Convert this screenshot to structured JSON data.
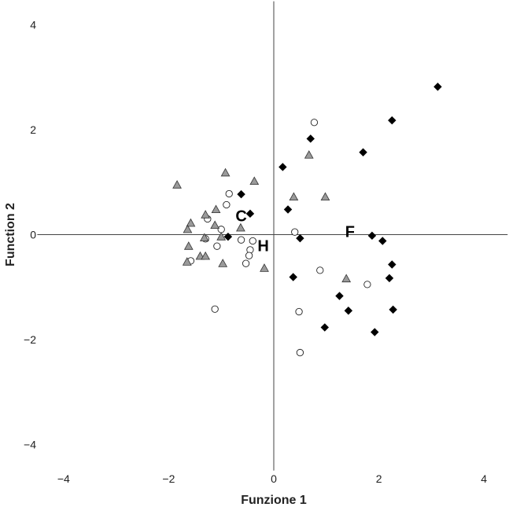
{
  "chart_data": {
    "type": "scatter",
    "title": "",
    "xlabel": "Funzione 1",
    "ylabel": "Function 2",
    "xlim": [
      -4.5,
      4.45
    ],
    "ylim": [
      -4.5,
      4.45
    ],
    "x_ticks": [
      -4,
      -2,
      0,
      2,
      4
    ],
    "y_ticks": [
      -4,
      -2,
      0,
      2,
      4
    ],
    "x_tick_labels": [
      "−4",
      "−2",
      "0",
      "2",
      "4"
    ],
    "y_tick_labels": [
      "−4",
      "−2",
      "0",
      "2",
      "4"
    ],
    "zero_lines": true,
    "grid": false,
    "series": [
      {
        "marker": "diamond",
        "fill": "#000000",
        "points": [
          [
            3.12,
            2.82
          ],
          [
            2.25,
            2.18
          ],
          [
            1.7,
            1.57
          ],
          [
            0.7,
            1.83
          ],
          [
            0.17,
            1.29
          ],
          [
            -0.62,
            0.77
          ],
          [
            -0.45,
            0.4
          ],
          [
            0.27,
            0.48
          ],
          [
            -0.87,
            -0.04
          ],
          [
            0.5,
            -0.07
          ],
          [
            1.87,
            -0.02
          ],
          [
            2.07,
            -0.12
          ],
          [
            2.25,
            -0.57
          ],
          [
            2.2,
            -0.83
          ],
          [
            0.37,
            -0.81
          ],
          [
            1.25,
            -1.17
          ],
          [
            1.42,
            -1.45
          ],
          [
            2.27,
            -1.43
          ],
          [
            0.97,
            -1.77
          ],
          [
            1.92,
            -1.86
          ]
        ]
      },
      {
        "marker": "circle",
        "fill": "#ffffff",
        "points": [
          [
            0.77,
            2.14
          ],
          [
            -0.85,
            0.78
          ],
          [
            -0.9,
            0.57
          ],
          [
            -1.26,
            0.3
          ],
          [
            -1.0,
            0.1
          ],
          [
            -1.3,
            -0.08
          ],
          [
            -1.58,
            -0.5
          ],
          [
            -1.08,
            -0.22
          ],
          [
            -0.4,
            -0.12
          ],
          [
            -0.62,
            -0.1
          ],
          [
            -0.45,
            -0.29
          ],
          [
            -0.47,
            -0.4
          ],
          [
            -0.53,
            -0.55
          ],
          [
            0.4,
            0.05
          ],
          [
            0.88,
            -0.68
          ],
          [
            1.78,
            -0.95
          ],
          [
            0.48,
            -1.47
          ],
          [
            -1.12,
            -1.42
          ],
          [
            0.5,
            -2.25
          ]
        ]
      },
      {
        "marker": "triangle",
        "fill": "#9a9a9a",
        "points": [
          [
            -1.84,
            0.95
          ],
          [
            -0.92,
            1.18
          ],
          [
            -0.37,
            1.02
          ],
          [
            -1.58,
            0.22
          ],
          [
            -1.64,
            0.1
          ],
          [
            -1.3,
            0.38
          ],
          [
            -1.1,
            0.48
          ],
          [
            -1.12,
            0.18
          ],
          [
            -0.63,
            0.13
          ],
          [
            -1.0,
            -0.04
          ],
          [
            -1.32,
            -0.06
          ],
          [
            -1.62,
            -0.22
          ],
          [
            -1.65,
            -0.52
          ],
          [
            -1.4,
            -0.41
          ],
          [
            -1.3,
            -0.41
          ],
          [
            -0.97,
            -0.55
          ],
          [
            -0.18,
            -0.64
          ],
          [
            0.38,
            0.72
          ],
          [
            0.67,
            1.52
          ],
          [
            0.98,
            0.72
          ],
          [
            1.38,
            -0.84
          ]
        ]
      }
    ],
    "centroid_labels": [
      {
        "text": "C",
        "x": -0.62,
        "y": 0.36
      },
      {
        "text": "F",
        "x": 1.45,
        "y": 0.06
      },
      {
        "text": "H",
        "x": -0.2,
        "y": -0.21
      }
    ]
  }
}
